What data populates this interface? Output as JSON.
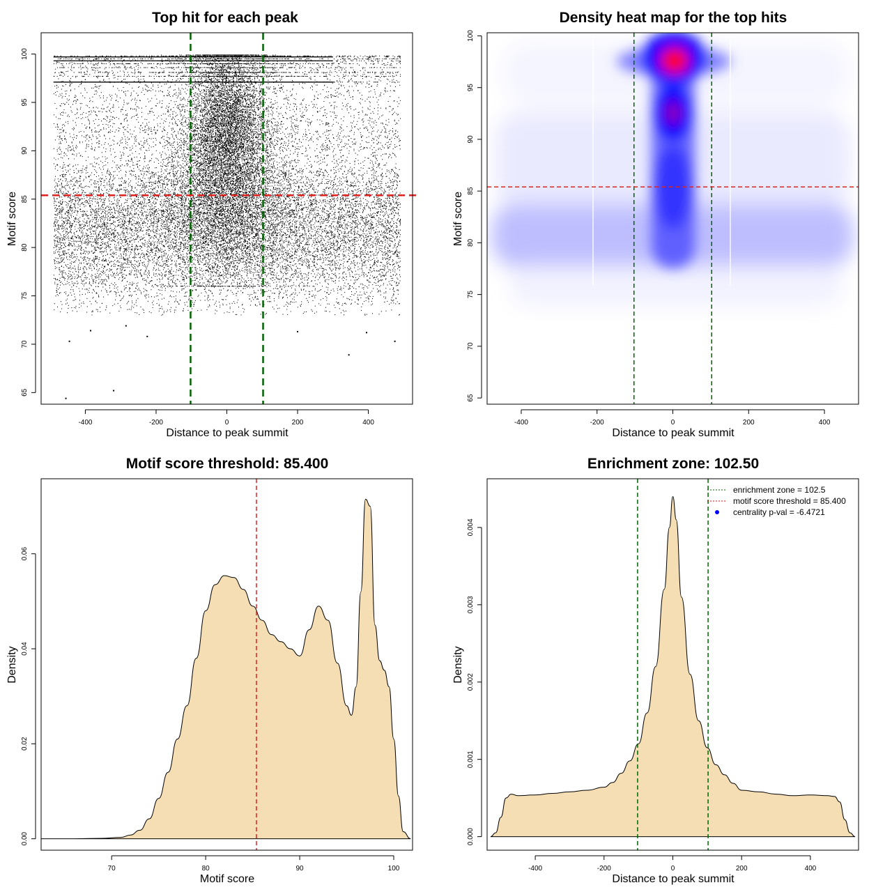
{
  "chart_data": [
    {
      "type": "scatter",
      "title": "Top hit for each peak",
      "xlabel": "Distance to peak summit",
      "ylabel": "Motif score",
      "xlim": [
        -525,
        525
      ],
      "ylim": [
        63.8,
        102.2
      ],
      "x_ticks": [
        -400,
        -200,
        0,
        200,
        400
      ],
      "y_ticks": [
        65,
        70,
        75,
        80,
        85,
        90,
        95,
        100
      ],
      "reference_lines": {
        "vertical": [
          -102.5,
          102.5
        ],
        "horizontal": [
          85.4
        ]
      },
      "points": {
        "description": "tens of thousands of top-hit positions",
        "x_range": [
          -490,
          490
        ],
        "y_range": [
          64.5,
          100
        ],
        "dense_center_x": [
          -100,
          100
        ],
        "dense_center_y": [
          88,
          99
        ],
        "broad_band_y": [
          78,
          86
        ],
        "outliers": [
          [
            -455,
            64.4
          ],
          [
            -320,
            65.2
          ],
          [
            345,
            68.9
          ],
          [
            -445,
            70.3
          ],
          [
            475,
            70.3
          ],
          [
            -385,
            71.4
          ],
          [
            -285,
            71.9
          ],
          [
            -225,
            70.8
          ],
          [
            200,
            71.3
          ],
          [
            395,
            71.2
          ]
        ]
      }
    },
    {
      "type": "heatmap",
      "title": "Density heat map for the top hits",
      "xlabel": "Distance to peak summit",
      "ylabel": "Motif score",
      "xlim": [
        -490,
        490
      ],
      "ylim": [
        64.4,
        100.3
      ],
      "x_ticks": [
        -400,
        -200,
        0,
        200,
        400
      ],
      "y_ticks": [
        65,
        70,
        75,
        80,
        85,
        90,
        95,
        100
      ],
      "reference_lines": {
        "vertical": [
          -102.5,
          102.5
        ],
        "horizontal": [
          85.4
        ]
      },
      "color_scale": [
        "#ffffff",
        "#0000ff",
        "#ff0000"
      ],
      "hotspots": [
        {
          "x": 5,
          "y": 97.6,
          "intensity": "max"
        },
        {
          "x": 0,
          "y": 92.3,
          "intensity": "high"
        },
        {
          "x": 0,
          "y": 85,
          "intensity": "medium"
        },
        {
          "x": 0,
          "y": 81,
          "intensity": "low-band across full x range"
        }
      ]
    },
    {
      "type": "area",
      "title": "Motif score threshold: 85.400",
      "xlabel": "Motif score",
      "ylabel": "Density",
      "xlim": [
        62.5,
        102.0
      ],
      "ylim": [
        -0.0024,
        0.0758
      ],
      "x_ticks": [
        70,
        80,
        90,
        100
      ],
      "y_ticks": [
        0.0,
        0.02,
        0.04,
        0.06
      ],
      "y_tick_labels": [
        "0.00",
        "0.02",
        "0.04",
        "0.06"
      ],
      "reference_lines": {
        "vertical": [
          85.4
        ]
      },
      "x": [
        62.5,
        66,
        69,
        71,
        72,
        73,
        74,
        75,
        76,
        77,
        78,
        79,
        80,
        81,
        82,
        83,
        84,
        85,
        86,
        87,
        88,
        89,
        90,
        91,
        92,
        93,
        94,
        95,
        95.5,
        96,
        96.5,
        97,
        97.5,
        98,
        98.5,
        99,
        99.5,
        100,
        100.5,
        101,
        101.8
      ],
      "y": [
        0,
        0,
        0.0001,
        0.0003,
        0.0008,
        0.0018,
        0.0042,
        0.0085,
        0.014,
        0.021,
        0.028,
        0.038,
        0.048,
        0.0535,
        0.0554,
        0.055,
        0.0525,
        0.049,
        0.046,
        0.043,
        0.0415,
        0.04,
        0.0385,
        0.044,
        0.049,
        0.046,
        0.037,
        0.028,
        0.026,
        0.032,
        0.052,
        0.0715,
        0.07,
        0.045,
        0.0375,
        0.0355,
        0.032,
        0.021,
        0.009,
        0.0015,
        0
      ]
    },
    {
      "type": "area",
      "title": "Enrichment zone: 102.50",
      "xlabel": "Distance to peak summit",
      "ylabel": "Density",
      "xlim": [
        -540,
        540
      ],
      "ylim": [
        -0.000175,
        0.00463
      ],
      "x_ticks": [
        -400,
        -200,
        0,
        200,
        400
      ],
      "y_ticks": [
        0.0,
        0.001,
        0.002,
        0.003,
        0.004
      ],
      "y_tick_labels": [
        "0.000",
        "0.001",
        "0.002",
        "0.003",
        "0.004"
      ],
      "reference_lines": {
        "vertical": [
          -102.5,
          102.5
        ]
      },
      "x": [
        -530,
        -515,
        -500,
        -485,
        -470,
        -450,
        -400,
        -350,
        -300,
        -250,
        -200,
        -175,
        -150,
        -125,
        -100,
        -75,
        -50,
        -25,
        -10,
        0,
        10,
        25,
        50,
        75,
        100,
        125,
        150,
        175,
        200,
        250,
        300,
        350,
        400,
        450,
        470,
        485,
        500,
        515,
        530
      ],
      "y": [
        0,
        5e-05,
        0.00025,
        0.0005,
        0.00055,
        0.00053,
        0.00054,
        0.00056,
        0.00058,
        0.0006,
        0.00064,
        0.0007,
        0.00082,
        0.00098,
        0.0012,
        0.0016,
        0.0022,
        0.0032,
        0.004,
        0.0044,
        0.0041,
        0.0031,
        0.0021,
        0.0015,
        0.00115,
        0.00093,
        0.0008,
        0.00069,
        0.0006,
        0.00058,
        0.00055,
        0.00053,
        0.00054,
        0.00053,
        0.00052,
        0.00045,
        0.00022,
        5e-05,
        0
      ],
      "legend": {
        "position": "top-right",
        "entries": [
          {
            "label": "enrichment zone = 102.5",
            "color": "#006400",
            "style": "dotted-line"
          },
          {
            "label": "motif score threshold = 85.400",
            "color": "#ff0000",
            "style": "dotted-line"
          },
          {
            "label": "centrality p-val = -6.4721",
            "color": "#0000ff",
            "style": "point"
          }
        ]
      }
    }
  ],
  "colors": {
    "points": "#000000",
    "enrichment_line": "#006400",
    "threshold_line": "#dd2222",
    "density_fill": "#f5deb3",
    "heat_low": "#ffffff",
    "heat_mid": "#0000ff",
    "heat_high": "#ff0000"
  }
}
